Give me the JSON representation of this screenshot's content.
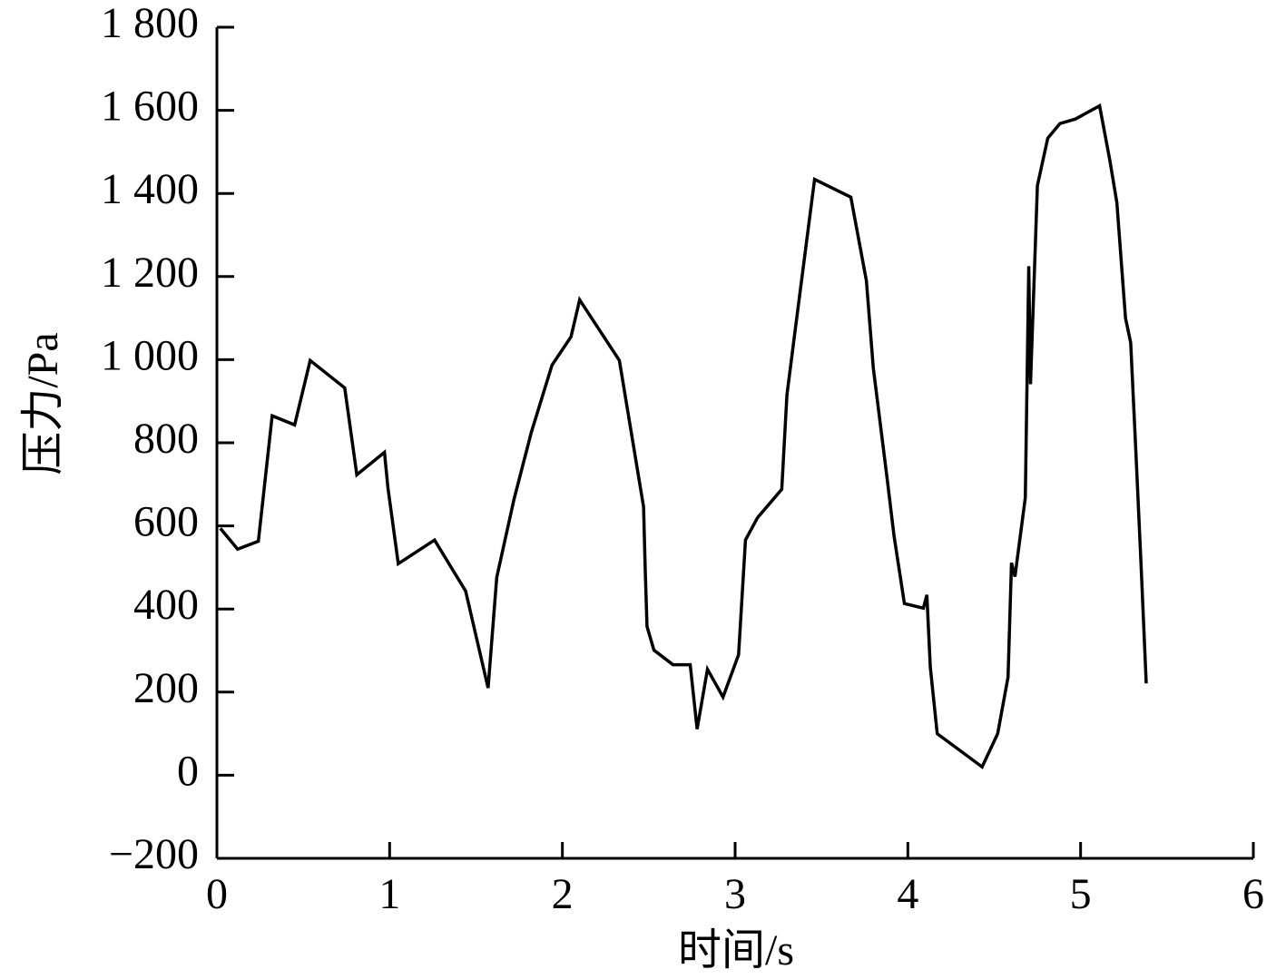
{
  "chart_data": {
    "type": "line",
    "xlabel": "时间/s",
    "ylabel": "压力/Pa",
    "x": [
      0.02,
      0.12,
      0.24,
      0.32,
      0.45,
      0.54,
      0.74,
      0.81,
      0.97,
      0.99,
      1.05,
      1.26,
      1.44,
      1.57,
      1.62,
      1.72,
      1.82,
      1.94,
      2.05,
      2.1,
      2.33,
      2.47,
      2.48,
      2.49,
      2.53,
      2.64,
      2.74,
      2.78,
      2.84,
      2.93,
      3.02,
      3.06,
      3.13,
      3.27,
      3.3,
      3.34,
      3.46,
      3.67,
      3.76,
      3.8,
      3.88,
      3.92,
      3.98,
      4.09,
      4.11,
      4.13,
      4.17,
      4.43,
      4.52,
      4.58,
      4.6,
      4.62,
      4.68,
      4.7,
      4.71,
      4.75,
      4.81,
      4.88,
      4.97,
      5.11,
      5.17,
      5.21,
      5.26,
      5.29,
      5.32,
      5.35,
      5.38
    ],
    "series": [
      {
        "color": "#000000",
        "values": [
          594,
          544,
          563,
          865,
          843,
          998,
          932,
          723,
          777,
          692,
          509,
          566,
          443,
          210,
          476,
          664,
          825,
          987,
          1055,
          1144,
          998,
          646,
          489,
          358,
          301,
          266,
          266,
          111,
          255,
          188,
          290,
          566,
          620,
          688,
          915,
          1046,
          1434,
          1391,
          1190,
          980,
          714,
          576,
          413,
          402,
          434,
          260,
          100,
          20,
          100,
          236,
          511,
          478,
          668,
          1225,
          941,
          1419,
          1533,
          1568,
          1579,
          1611,
          1478,
          1378,
          1100,
          1041,
          779,
          507,
          221
        ]
      }
    ],
    "xlim": [
      0,
      6
    ],
    "xticks": [
      0,
      1,
      2,
      3,
      4,
      5,
      6
    ],
    "ylim": [
      -200,
      1800
    ],
    "yticks": [
      {
        "value": -200,
        "label": "−200"
      },
      0,
      200,
      400,
      600,
      800,
      {
        "value": 1000,
        "label": "1 000"
      },
      {
        "value": 1200,
        "label": "1 200"
      },
      {
        "value": 1400,
        "label": "1 400"
      },
      {
        "value": 1600,
        "label": "1 600"
      },
      {
        "value": 1800,
        "label": "1 800"
      }
    ]
  }
}
